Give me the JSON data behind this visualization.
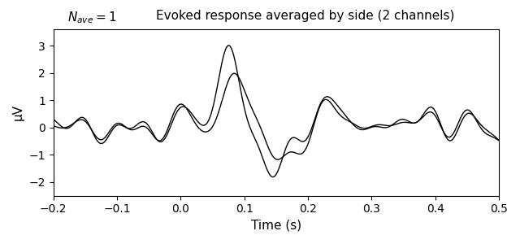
{
  "title": "Evoked response averaged by side (2 channels)",
  "xlabel": "Time (s)",
  "ylabel": "μV",
  "xlim": [
    -0.2,
    0.5
  ],
  "ylim": [
    -2.5,
    3.6
  ],
  "yticks": [
    -2,
    -1,
    0,
    1,
    2,
    3
  ],
  "line_color": "#000000",
  "linewidth": 1.0,
  "figsize": [
    6.4,
    3.0
  ],
  "dpi": 100
}
